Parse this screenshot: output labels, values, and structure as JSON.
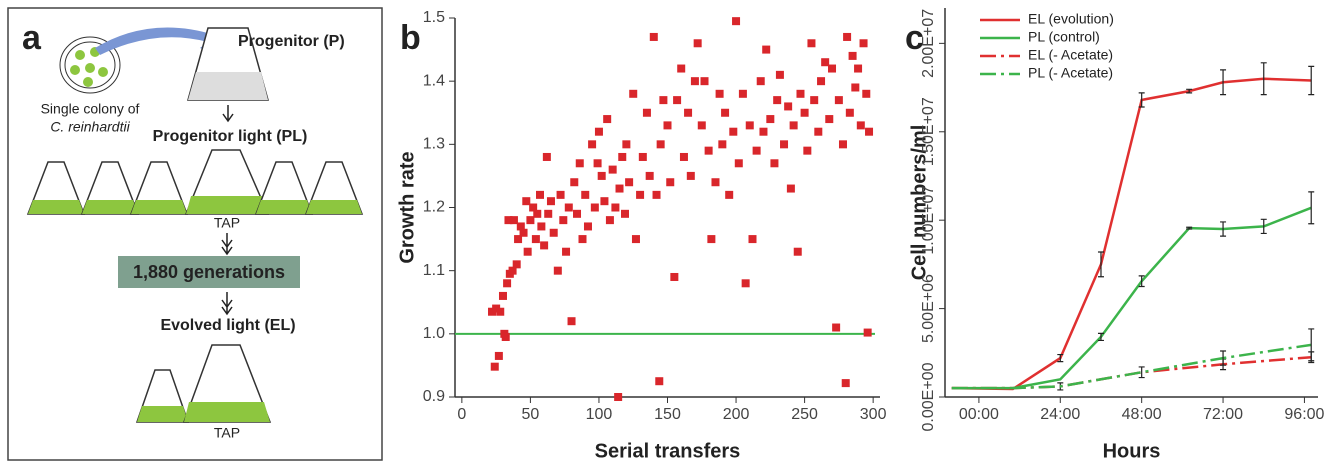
{
  "panel_a": {
    "panel_label": "a",
    "progenitor": "Progenitor (P)",
    "colony_line1": "Single colony of",
    "colony_line2": "C. reinhardtii",
    "progenitor_light": "Progenitor light (PL)",
    "tap_1": "TAP",
    "generations": "1,880 generations",
    "evolved_light": "Evolved light (EL)",
    "tap_2": "TAP"
  },
  "chart_data": [
    {
      "type": "scatter",
      "panel_label": "b",
      "x_label": "Serial transfers",
      "y_label": "Growth rate",
      "color": "#d9262b",
      "reference_line": {
        "value": 1,
        "color": "#3cb44b"
      },
      "x": [
        22,
        24,
        25,
        27,
        28,
        30,
        31,
        32,
        33,
        34,
        35,
        37,
        38,
        40,
        41,
        43,
        45,
        47,
        48,
        50,
        52,
        54,
        55,
        57,
        58,
        60,
        62,
        63,
        65,
        67,
        70,
        72,
        74,
        76,
        78,
        80,
        82,
        84,
        86,
        88,
        90,
        92,
        95,
        97,
        99,
        100,
        102,
        104,
        106,
        108,
        110,
        112,
        114,
        115,
        117,
        119,
        120,
        122,
        125,
        127,
        130,
        132,
        135,
        137,
        140,
        142,
        144,
        145,
        147,
        150,
        152,
        155,
        157,
        160,
        162,
        165,
        167,
        170,
        172,
        175,
        177,
        180,
        182,
        185,
        188,
        190,
        192,
        195,
        198,
        200,
        202,
        205,
        207,
        210,
        212,
        215,
        218,
        220,
        222,
        225,
        228,
        230,
        232,
        235,
        238,
        240,
        242,
        245,
        247,
        250,
        252,
        255,
        257,
        260,
        262,
        265,
        268,
        270,
        273,
        275,
        278,
        280,
        281,
        283,
        285,
        287,
        289,
        291,
        293,
        295,
        296,
        297
      ],
      "y": [
        1.035,
        0.948,
        1.04,
        0.965,
        1.035,
        1.06,
        1.0,
        0.995,
        1.08,
        1.18,
        1.095,
        1.1,
        1.18,
        1.11,
        1.15,
        1.17,
        1.16,
        1.21,
        1.13,
        1.18,
        1.2,
        1.15,
        1.19,
        1.22,
        1.17,
        1.14,
        1.28,
        1.19,
        1.21,
        1.16,
        1.1,
        1.22,
        1.18,
        1.13,
        1.2,
        1.02,
        1.24,
        1.19,
        1.27,
        1.15,
        1.22,
        1.17,
        1.3,
        1.2,
        1.27,
        1.32,
        1.25,
        1.21,
        1.34,
        1.18,
        1.26,
        1.2,
        0.9,
        1.23,
        1.28,
        1.19,
        1.3,
        1.24,
        1.38,
        1.15,
        1.22,
        1.28,
        1.35,
        1.25,
        1.47,
        1.22,
        0.925,
        1.3,
        1.37,
        1.33,
        1.24,
        1.09,
        1.37,
        1.42,
        1.28,
        1.35,
        1.25,
        1.4,
        1.46,
        1.33,
        1.4,
        1.29,
        1.15,
        1.24,
        1.38,
        1.3,
        1.35,
        1.22,
        1.32,
        1.495,
        1.27,
        1.38,
        1.08,
        1.33,
        1.15,
        1.29,
        1.4,
        1.32,
        1.45,
        1.34,
        1.27,
        1.37,
        1.41,
        1.3,
        1.36,
        1.23,
        1.33,
        1.13,
        1.38,
        1.35,
        1.29,
        1.46,
        1.37,
        1.32,
        1.4,
        1.43,
        1.34,
        1.42,
        1.01,
        1.37,
        1.3,
        0.922,
        1.47,
        1.35,
        1.44,
        1.39,
        1.42,
        1.33,
        1.46,
        1.38,
        1.002,
        1.32
      ],
      "xlim": [
        -5,
        305
      ],
      "ylim": [
        0.9,
        1.5
      ],
      "xticks": [
        0,
        50,
        100,
        150,
        200,
        250,
        300
      ],
      "yticks": [
        0.9,
        {
          "value": 1,
          "label": "1.0"
        },
        1.1,
        1.2,
        1.3,
        1.4,
        1.5
      ]
    },
    {
      "type": "line",
      "panel_label": "c",
      "x_label": "Hours",
      "y_label": "Cell numbers/ml",
      "legend": "upper left",
      "xlim": [
        -10,
        100
      ],
      "ylim": [
        0,
        22000000
      ],
      "xticks": [
        {
          "value": 0,
          "label": "00:00"
        },
        {
          "value": 24,
          "label": "24:00"
        },
        {
          "value": 48,
          "label": "48:00"
        },
        {
          "value": 72,
          "label": "72:00"
        },
        {
          "value": 96,
          "label": "96:00"
        }
      ],
      "yticks": [
        {
          "value": 0,
          "label": "0.00E+00"
        },
        {
          "value": 5000000,
          "label": "5.00E+06"
        },
        {
          "value": 10000000,
          "label": "1.00E+07"
        },
        {
          "value": 15000000,
          "label": "1.50E+07"
        },
        {
          "value": 20000000,
          "label": "2.00E+07"
        }
      ],
      "series": [
        {
          "name": "EL (evolution)",
          "color": "#e03030",
          "dashed": false,
          "x": [
            -8,
            10,
            24,
            36,
            48,
            62,
            72,
            84,
            98
          ],
          "values": [
            500000,
            450000,
            2200000,
            7500000,
            16800000,
            17300000,
            17800000,
            18000000,
            17900000
          ],
          "errors": [
            null,
            null,
            200000,
            700000,
            400000,
            100000,
            700000,
            900000,
            800000
          ]
        },
        {
          "name": "PL (control)",
          "color": "#3cb44b",
          "dashed": false,
          "x": [
            -8,
            10,
            24,
            36,
            48,
            62,
            72,
            84,
            98
          ],
          "values": [
            500000,
            500000,
            1000000,
            3400000,
            6550000,
            9550000,
            9500000,
            9650000,
            10700000
          ],
          "errors": [
            null,
            null,
            null,
            200000,
            300000,
            50000,
            400000,
            400000,
            900000
          ]
        },
        {
          "name": "EL (- Acetate)",
          "color": "#e03030",
          "dashed": true,
          "x": [
            -8,
            10,
            24,
            48,
            72,
            98
          ],
          "values": [
            500000,
            500000,
            600000,
            1400000,
            1850000,
            2250000
          ],
          "errors": [
            null,
            null,
            200000,
            300000,
            300000,
            300000
          ]
        },
        {
          "name": "PL (- Acetate)",
          "color": "#3cb44b",
          "dashed": true,
          "x": [
            -8,
            10,
            24,
            48,
            72,
            98
          ],
          "values": [
            500000,
            500000,
            600000,
            1400000,
            2200000,
            2950000
          ],
          "errors": [
            null,
            null,
            null,
            null,
            400000,
            900000
          ]
        }
      ]
    }
  ]
}
